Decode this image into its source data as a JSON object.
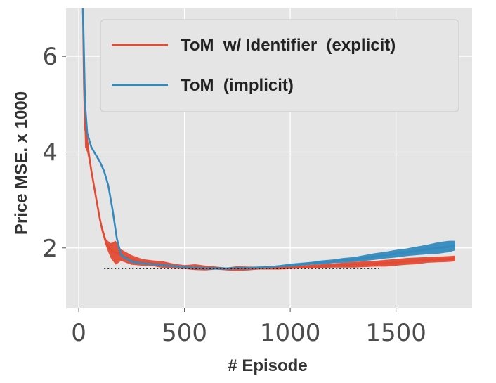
{
  "chart_data": {
    "type": "line",
    "title": "",
    "xlabel": "# Episode",
    "ylabel": "Price MSE. x 1000",
    "xlim": [
      -60,
      1860
    ],
    "ylim": [
      0.75,
      7.0
    ],
    "xticks": [
      0,
      500,
      1000,
      1500
    ],
    "xtick_labels": [
      "0",
      "500",
      "1000",
      "1500"
    ],
    "yticks": [
      2,
      4,
      6
    ],
    "ytick_labels": [
      "2",
      "4",
      "6"
    ],
    "grid": true,
    "legend_position": "top-right",
    "reference_line": {
      "style": "dotted",
      "x": [
        120,
        1420
      ],
      "y": 1.57
    },
    "series": [
      {
        "name": "ToM  w/ Identifier  (explicit)",
        "color": "#e24a33",
        "x": [
          20,
          25,
          30,
          40,
          60,
          80,
          100,
          110,
          130,
          150,
          175,
          200,
          250,
          300,
          350,
          400,
          450,
          500,
          550,
          600,
          650,
          700,
          750,
          800,
          850,
          900,
          950,
          1000,
          1050,
          1100,
          1150,
          1200,
          1250,
          1300,
          1350,
          1400,
          1450,
          1500,
          1550,
          1600,
          1650,
          1700,
          1750,
          1780
        ],
        "values": [
          7.0,
          5.4,
          4.5,
          4.2,
          3.6,
          3.1,
          2.6,
          2.4,
          2.1,
          1.95,
          1.9,
          1.85,
          1.75,
          1.7,
          1.68,
          1.65,
          1.62,
          1.6,
          1.6,
          1.58,
          1.58,
          1.56,
          1.57,
          1.57,
          1.58,
          1.58,
          1.58,
          1.59,
          1.6,
          1.61,
          1.62,
          1.63,
          1.64,
          1.65,
          1.66,
          1.67,
          1.68,
          1.7,
          1.72,
          1.73,
          1.75,
          1.76,
          1.77,
          1.78
        ],
        "band": [
          0,
          0.5,
          0.4,
          0.2,
          0.05,
          0.05,
          0.06,
          0.08,
          0.08,
          0.15,
          0.25,
          0.12,
          0.1,
          0.07,
          0.06,
          0.07,
          0.05,
          0.04,
          0.06,
          0.05,
          0.03,
          0.03,
          0.05,
          0.04,
          0.03,
          0.03,
          0.03,
          0.03,
          0.03,
          0.04,
          0.04,
          0.04,
          0.05,
          0.06,
          0.06,
          0.06,
          0.07,
          0.07,
          0.07,
          0.07,
          0.06,
          0.06,
          0.06,
          0.06
        ]
      },
      {
        "name": "ToM  (implicit)",
        "color": "#348abd",
        "x": [
          20,
          25,
          30,
          40,
          60,
          80,
          100,
          120,
          140,
          160,
          180,
          200,
          250,
          300,
          350,
          400,
          450,
          500,
          550,
          600,
          650,
          700,
          750,
          800,
          850,
          900,
          950,
          1000,
          1050,
          1100,
          1150,
          1200,
          1250,
          1300,
          1350,
          1400,
          1450,
          1500,
          1550,
          1600,
          1650,
          1700,
          1750,
          1780
        ],
        "values": [
          7.0,
          6.0,
          5.0,
          4.4,
          4.1,
          3.95,
          3.8,
          3.6,
          3.3,
          2.8,
          2.2,
          1.85,
          1.72,
          1.68,
          1.66,
          1.64,
          1.62,
          1.6,
          1.59,
          1.58,
          1.57,
          1.57,
          1.58,
          1.58,
          1.59,
          1.6,
          1.62,
          1.64,
          1.66,
          1.68,
          1.7,
          1.72,
          1.74,
          1.76,
          1.79,
          1.82,
          1.85,
          1.88,
          1.91,
          1.94,
          1.97,
          2.0,
          2.03,
          2.05
        ],
        "band": [
          0,
          0.3,
          0.2,
          0.05,
          0.03,
          0.03,
          0.03,
          0.03,
          0.03,
          0.03,
          0.03,
          0.03,
          0.03,
          0.02,
          0.02,
          0.02,
          0.02,
          0.02,
          0.02,
          0.02,
          0.02,
          0.02,
          0.02,
          0.02,
          0.02,
          0.02,
          0.02,
          0.03,
          0.03,
          0.03,
          0.04,
          0.04,
          0.05,
          0.05,
          0.06,
          0.07,
          0.07,
          0.08,
          0.08,
          0.09,
          0.1,
          0.12,
          0.12,
          0.1
        ]
      }
    ]
  }
}
